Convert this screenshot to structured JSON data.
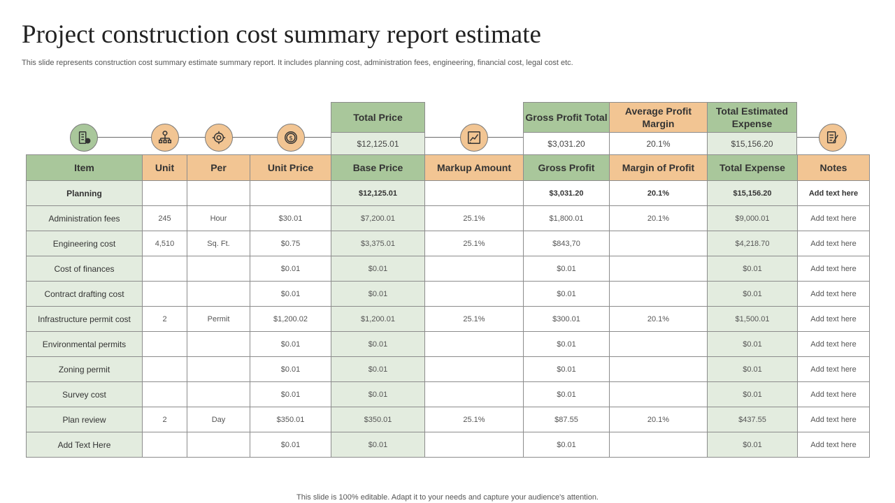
{
  "title": "Project construction cost summary report estimate",
  "subtitle": "This slide represents construction cost summary estimate summary report. It includes planning cost, administration fees, engineering, financial cost, legal cost etc.",
  "footer": "This slide is 100% editable. Adapt it to your needs and capture your audience's attention.",
  "icons": [
    "building-checklist-icon",
    "hierarchy-dollar-icon",
    "gear-chart-icon",
    "dollar-coin-icon",
    "chart-analytics-icon",
    "document-edit-icon"
  ],
  "summary": {
    "total_price": {
      "label": "Total Price",
      "value": "$12,125.01"
    },
    "gross_profit_total": {
      "label": "Gross Profit Total",
      "value": "$3,031.20"
    },
    "average_profit_margin": {
      "label": "Average Profit Margin",
      "value": "20.1%"
    },
    "total_estimated_expense": {
      "label": "Total Estimated Expense",
      "value": "$15,156.20"
    }
  },
  "table": {
    "headers": [
      "Item",
      "Unit",
      "Per",
      "Unit Price",
      "Base Price",
      "Markup Amount",
      "Gross Profit",
      "Margin of Profit",
      "Total Expense",
      "Notes"
    ],
    "rows": [
      [
        "Planning",
        "",
        "",
        "",
        "$12,125.01",
        "",
        "$3,031.20",
        "20.1%",
        "$15,156.20",
        "Add text here"
      ],
      [
        "Administration fees",
        "245",
        "Hour",
        "$30.01",
        "$7,200.01",
        "25.1%",
        "$1,800.01",
        "20.1%",
        "$9,000.01",
        "Add text here"
      ],
      [
        "Engineering cost",
        "4,510",
        "Sq. Ft.",
        "$0.75",
        "$3,375.01",
        "25.1%",
        "$843,70",
        "",
        "$4,218.70",
        "Add text here"
      ],
      [
        "Cost of finances",
        "",
        "",
        "$0.01",
        "$0.01",
        "",
        "$0.01",
        "",
        "$0.01",
        "Add text here"
      ],
      [
        "Contract drafting cost",
        "",
        "",
        "$0.01",
        "$0.01",
        "",
        "$0.01",
        "",
        "$0.01",
        "Add text here"
      ],
      [
        "Infrastructure permit cost",
        "2",
        "Permit",
        "$1,200.02",
        "$1,200.01",
        "25.1%",
        "$300.01",
        "20.1%",
        "$1,500.01",
        "Add text here"
      ],
      [
        "Environmental permits",
        "",
        "",
        "$0.01",
        "$0.01",
        "",
        "$0.01",
        "",
        "$0.01",
        "Add text here"
      ],
      [
        "Zoning permit",
        "",
        "",
        "$0.01",
        "$0.01",
        "",
        "$0.01",
        "",
        "$0.01",
        "Add text here"
      ],
      [
        "Survey  cost",
        "",
        "",
        "$0.01",
        "$0.01",
        "",
        "$0.01",
        "",
        "$0.01",
        "Add text here"
      ],
      [
        "Plan review",
        "2",
        "Day",
        "$350.01",
        "$350.01",
        "25.1%",
        "$87.55",
        "20.1%",
        "$437.55",
        "Add text here"
      ],
      [
        "Add Text Here",
        "",
        "",
        "$0.01",
        "$0.01",
        "",
        "$0.01",
        "",
        "$0.01",
        "Add text here"
      ]
    ]
  }
}
